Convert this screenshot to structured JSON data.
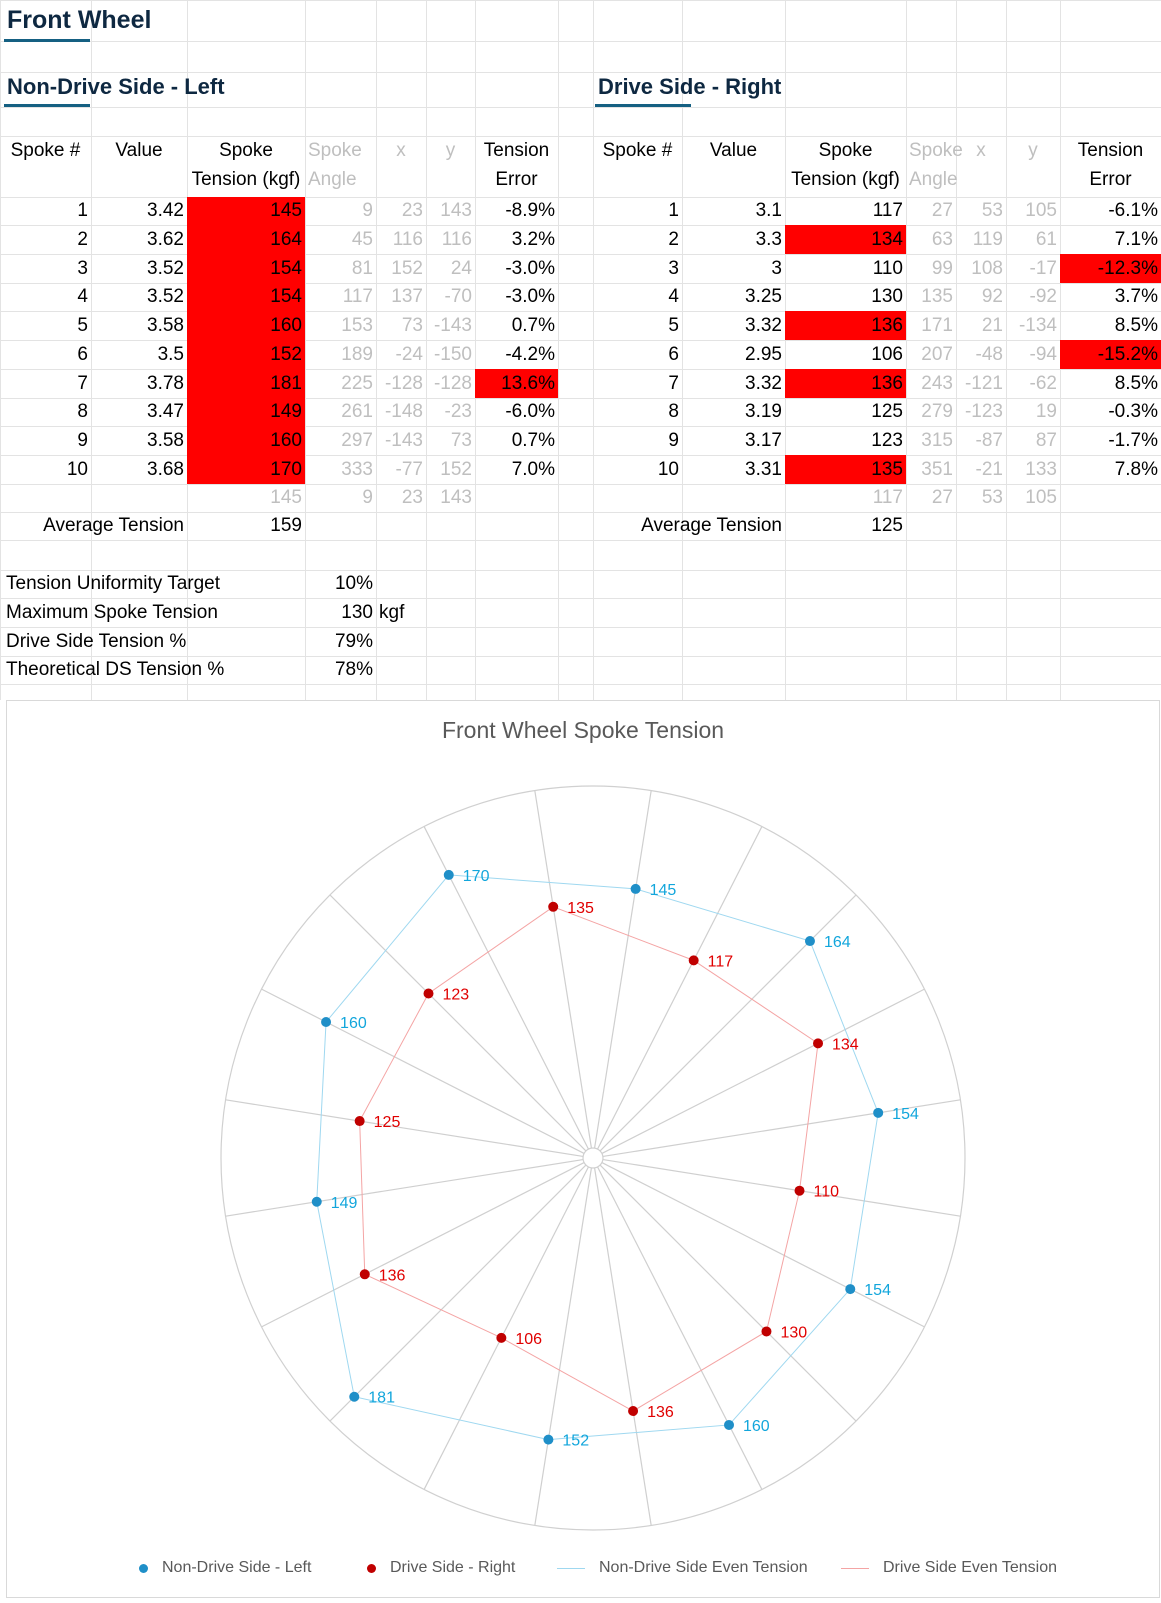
{
  "sheet_title": "Front Wheel",
  "left": {
    "title": "Non-Drive Side - Left",
    "headers": {
      "spoke": "Spoke #",
      "value": "Value",
      "tension1": "Spoke",
      "tension2": "Tension (kgf)",
      "angle1": "Spoke",
      "angle2": "Angle",
      "x": "x",
      "y": "y",
      "error1": "Tension",
      "error2": "Error"
    },
    "rows": [
      {
        "spoke": "1",
        "value": "3.42",
        "tension": "145",
        "angle": "9",
        "x": "23",
        "y": "143",
        "error": "-8.9%",
        "hiT": true,
        "hiE": false
      },
      {
        "spoke": "2",
        "value": "3.62",
        "tension": "164",
        "angle": "45",
        "x": "116",
        "y": "116",
        "error": "3.2%",
        "hiT": true,
        "hiE": false
      },
      {
        "spoke": "3",
        "value": "3.52",
        "tension": "154",
        "angle": "81",
        "x": "152",
        "y": "24",
        "error": "-3.0%",
        "hiT": true,
        "hiE": false
      },
      {
        "spoke": "4",
        "value": "3.52",
        "tension": "154",
        "angle": "117",
        "x": "137",
        "y": "-70",
        "error": "-3.0%",
        "hiT": true,
        "hiE": false
      },
      {
        "spoke": "5",
        "value": "3.58",
        "tension": "160",
        "angle": "153",
        "x": "73",
        "y": "-143",
        "error": "0.7%",
        "hiT": true,
        "hiE": false
      },
      {
        "spoke": "6",
        "value": "3.5",
        "tension": "152",
        "angle": "189",
        "x": "-24",
        "y": "-150",
        "error": "-4.2%",
        "hiT": true,
        "hiE": false
      },
      {
        "spoke": "7",
        "value": "3.78",
        "tension": "181",
        "angle": "225",
        "x": "-128",
        "y": "-128",
        "error": "13.6%",
        "hiT": true,
        "hiE": true
      },
      {
        "spoke": "8",
        "value": "3.47",
        "tension": "149",
        "angle": "261",
        "x": "-148",
        "y": "-23",
        "error": "-6.0%",
        "hiT": true,
        "hiE": false
      },
      {
        "spoke": "9",
        "value": "3.58",
        "tension": "160",
        "angle": "297",
        "x": "-143",
        "y": "73",
        "error": "0.7%",
        "hiT": true,
        "hiE": false
      },
      {
        "spoke": "10",
        "value": "3.68",
        "tension": "170",
        "angle": "333",
        "x": "-77",
        "y": "152",
        "error": "7.0%",
        "hiT": true,
        "hiE": false
      }
    ],
    "extra": {
      "tension": "145",
      "angle": "9",
      "x": "23",
      "y": "143"
    },
    "avg_label": "Average Tension",
    "avg_value": "159"
  },
  "right": {
    "title": "Drive Side - Right",
    "headers": {
      "spoke": "Spoke #",
      "value": "Value",
      "tension1": "Spoke",
      "tension2": "Tension (kgf)",
      "angle1": "Spoke",
      "angle2": "Angle",
      "x": "x",
      "y": "y",
      "error1": "Tension",
      "error2": "Error"
    },
    "rows": [
      {
        "spoke": "1",
        "value": "3.1",
        "tension": "117",
        "angle": "27",
        "x": "53",
        "y": "105",
        "error": "-6.1%",
        "hiT": false,
        "hiE": false
      },
      {
        "spoke": "2",
        "value": "3.3",
        "tension": "134",
        "angle": "63",
        "x": "119",
        "y": "61",
        "error": "7.1%",
        "hiT": true,
        "hiE": false
      },
      {
        "spoke": "3",
        "value": "3",
        "tension": "110",
        "angle": "99",
        "x": "108",
        "y": "-17",
        "error": "-12.3%",
        "hiT": false,
        "hiE": true
      },
      {
        "spoke": "4",
        "value": "3.25",
        "tension": "130",
        "angle": "135",
        "x": "92",
        "y": "-92",
        "error": "3.7%",
        "hiT": false,
        "hiE": false
      },
      {
        "spoke": "5",
        "value": "3.32",
        "tension": "136",
        "angle": "171",
        "x": "21",
        "y": "-134",
        "error": "8.5%",
        "hiT": true,
        "hiE": false
      },
      {
        "spoke": "6",
        "value": "2.95",
        "tension": "106",
        "angle": "207",
        "x": "-48",
        "y": "-94",
        "error": "-15.2%",
        "hiT": false,
        "hiE": true
      },
      {
        "spoke": "7",
        "value": "3.32",
        "tension": "136",
        "angle": "243",
        "x": "-121",
        "y": "-62",
        "error": "8.5%",
        "hiT": true,
        "hiE": false
      },
      {
        "spoke": "8",
        "value": "3.19",
        "tension": "125",
        "angle": "279",
        "x": "-123",
        "y": "19",
        "error": "-0.3%",
        "hiT": false,
        "hiE": false
      },
      {
        "spoke": "9",
        "value": "3.17",
        "tension": "123",
        "angle": "315",
        "x": "-87",
        "y": "87",
        "error": "-1.7%",
        "hiT": false,
        "hiE": false
      },
      {
        "spoke": "10",
        "value": "3.31",
        "tension": "135",
        "angle": "351",
        "x": "-21",
        "y": "133",
        "error": "7.8%",
        "hiT": true,
        "hiE": false
      }
    ],
    "extra": {
      "tension": "117",
      "angle": "27",
      "x": "53",
      "y": "105"
    },
    "avg_label": "Average Tension",
    "avg_value": "125"
  },
  "summary": [
    {
      "label": "Tension Uniformity Target",
      "value": "10%",
      "unit": ""
    },
    {
      "label": "Maximum Spoke Tension",
      "value": "130",
      "unit": "kgf"
    },
    {
      "label": "Drive Side Tension %",
      "value": "79%",
      "unit": ""
    },
    {
      "label": "Theoretical DS Tension %",
      "value": "78%",
      "unit": ""
    }
  ],
  "colors": {
    "highlight": "#ff0000",
    "nds": "#1f8fc8",
    "ds": "#c00000",
    "nds_line": "#9fd8f0",
    "ds_line": "#f4a4a4",
    "title": "#0e2841",
    "underline": "#156082"
  },
  "chart_data": {
    "type": "scatter",
    "title": "Front Wheel Spoke Tension",
    "series": [
      {
        "name": "Non-Drive Side - Left",
        "angles": [
          9,
          45,
          81,
          117,
          153,
          189,
          225,
          261,
          297,
          333
        ],
        "values": [
          145,
          164,
          154,
          154,
          160,
          152,
          181,
          149,
          160,
          170
        ]
      },
      {
        "name": "Drive Side - Right",
        "angles": [
          27,
          63,
          99,
          135,
          171,
          207,
          243,
          279,
          315,
          351
        ],
        "values": [
          117,
          134,
          110,
          130,
          136,
          106,
          136,
          125,
          123,
          135
        ]
      },
      {
        "name": "Non-Drive Side Even Tension",
        "type": "line",
        "angles": [
          9,
          45,
          81,
          117,
          153,
          189,
          225,
          261,
          297,
          333,
          9
        ],
        "values": [
          145,
          164,
          154,
          154,
          160,
          152,
          181,
          149,
          160,
          170,
          145
        ]
      },
      {
        "name": "Drive Side Even Tension",
        "type": "line",
        "angles": [
          27,
          63,
          99,
          135,
          171,
          207,
          243,
          279,
          315,
          351,
          27
        ],
        "values": [
          117,
          134,
          110,
          130,
          136,
          106,
          136,
          125,
          123,
          135,
          117
        ]
      }
    ],
    "radial_max": 200,
    "spokes": 20,
    "legend_position": "bottom"
  }
}
